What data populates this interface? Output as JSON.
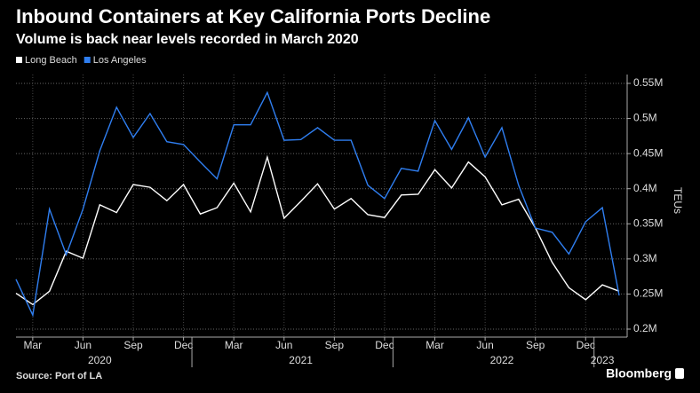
{
  "chart_data": {
    "type": "line",
    "title": "Inbound Containers at Key California Ports Decline",
    "subtitle": "Volume is back near levels recorded in March 2020",
    "y_label": "TEUs",
    "source": "Source: Port of LA",
    "brand": "Bloomberg",
    "legend": "top-left",
    "grid": true,
    "x": [
      "2020-02",
      "2020-03",
      "2020-04",
      "2020-05",
      "2020-06",
      "2020-07",
      "2020-08",
      "2020-09",
      "2020-10",
      "2020-11",
      "2020-12",
      "2021-01",
      "2021-02",
      "2021-03",
      "2021-04",
      "2021-05",
      "2021-06",
      "2021-07",
      "2021-08",
      "2021-09",
      "2021-10",
      "2021-11",
      "2021-12",
      "2022-01",
      "2022-02",
      "2022-03",
      "2022-04",
      "2022-05",
      "2022-06",
      "2022-07",
      "2022-08",
      "2022-09",
      "2022-10",
      "2022-11",
      "2022-12",
      "2023-01",
      "2023-02"
    ],
    "xlim": [
      "2020-02",
      "2023-02"
    ],
    "xticks": [
      {
        "value": "2020-03",
        "label": "Mar"
      },
      {
        "value": "2020-06",
        "label": "Jun"
      },
      {
        "value": "2020-09",
        "label": "Sep"
      },
      {
        "value": "2020-12",
        "label": "Dec"
      },
      {
        "value": "2021-03",
        "label": "Mar"
      },
      {
        "value": "2021-06",
        "label": "Jun"
      },
      {
        "value": "2021-09",
        "label": "Sep"
      },
      {
        "value": "2021-12",
        "label": "Dec"
      },
      {
        "value": "2022-03",
        "label": "Mar"
      },
      {
        "value": "2022-06",
        "label": "Jun"
      },
      {
        "value": "2022-09",
        "label": "Sep"
      },
      {
        "value": "2022-12",
        "label": "Dec"
      }
    ],
    "year_ticks": [
      {
        "value": "2020-07",
        "label": "2020"
      },
      {
        "value": "2021-07",
        "label": "2021"
      },
      {
        "value": "2022-07",
        "label": "2022"
      },
      {
        "value": "2023-01",
        "label": "2023"
      }
    ],
    "ylim": [
      0.2,
      0.55
    ],
    "yticks": [
      {
        "value": 0.2,
        "label": "0.2M"
      },
      {
        "value": 0.25,
        "label": "0.25M"
      },
      {
        "value": 0.3,
        "label": "0.3M"
      },
      {
        "value": 0.35,
        "label": "0.35M"
      },
      {
        "value": 0.4,
        "label": "0.4M"
      },
      {
        "value": 0.45,
        "label": "0.45M"
      },
      {
        "value": 0.5,
        "label": "0.5M"
      },
      {
        "value": 0.55,
        "label": "0.55M"
      }
    ],
    "series": [
      {
        "name": "Long Beach",
        "color": "#ffffff",
        "values": [
          0.251,
          0.235,
          0.254,
          0.311,
          0.301,
          0.377,
          0.366,
          0.406,
          0.402,
          0.383,
          0.406,
          0.364,
          0.373,
          0.408,
          0.367,
          0.445,
          0.358,
          0.382,
          0.407,
          0.371,
          0.386,
          0.363,
          0.359,
          0.391,
          0.392,
          0.427,
          0.401,
          0.438,
          0.417,
          0.377,
          0.385,
          0.344,
          0.295,
          0.259,
          0.242,
          0.263,
          0.254
        ]
      },
      {
        "name": "Los Angeles",
        "color": "#2f7ef0",
        "values": [
          0.271,
          0.22,
          0.371,
          0.306,
          0.371,
          0.454,
          0.516,
          0.473,
          0.507,
          0.467,
          0.463,
          0.438,
          0.414,
          0.491,
          0.491,
          0.537,
          0.469,
          0.47,
          0.487,
          0.469,
          0.469,
          0.405,
          0.386,
          0.429,
          0.425,
          0.497,
          0.456,
          0.501,
          0.445,
          0.487,
          0.405,
          0.344,
          0.338,
          0.307,
          0.353,
          0.373,
          0.248
        ]
      }
    ]
  }
}
